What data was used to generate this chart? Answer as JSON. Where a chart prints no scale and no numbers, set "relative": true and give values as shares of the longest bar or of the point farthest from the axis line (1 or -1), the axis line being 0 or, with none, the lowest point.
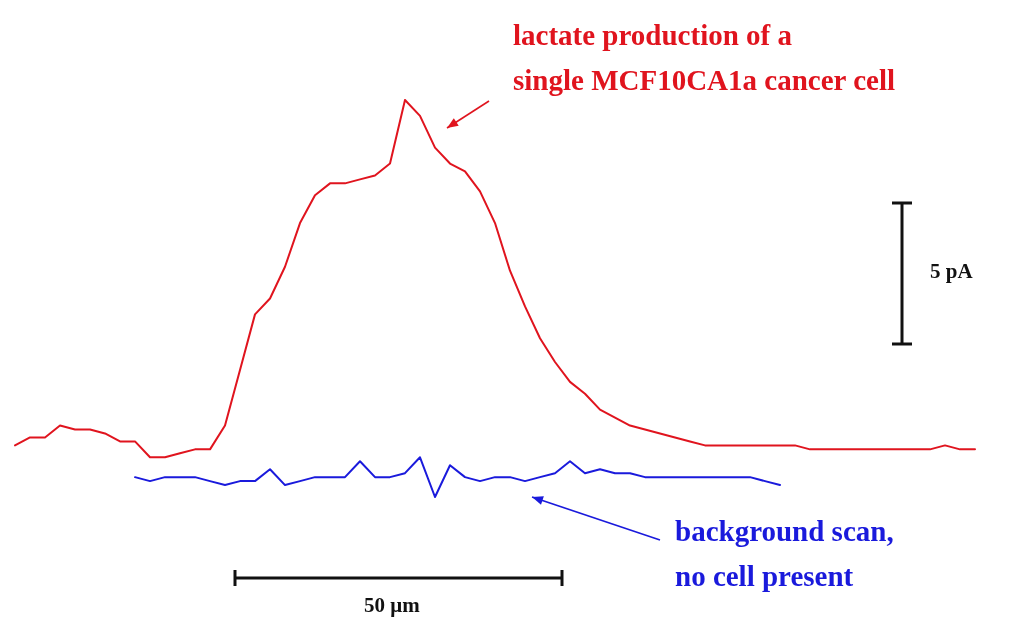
{
  "chart_data": {
    "type": "line",
    "relative": true,
    "categories": [
      null,
      null,
      null,
      null,
      null,
      null,
      null,
      null,
      null,
      null,
      null,
      null,
      null,
      null,
      null,
      null,
      null,
      null,
      null,
      null,
      null,
      null,
      null,
      null,
      null,
      null,
      null,
      null,
      null,
      null,
      null,
      null,
      null,
      null,
      null,
      null,
      null,
      null,
      null,
      null,
      null,
      null,
      null,
      null,
      null,
      null,
      null,
      null,
      null,
      null,
      null,
      null,
      null,
      null,
      null,
      null,
      null,
      null,
      null,
      null,
      null,
      null,
      null,
      null,
      null
    ],
    "series": [
      {
        "name": "lactate production of a\nsingle MCF10CA1a cancer cell",
        "color": "#e0141e",
        "values": [
          0.13,
          0.15,
          0.15,
          0.18,
          0.17,
          0.17,
          0.16,
          0.14,
          0.14,
          0.1,
          0.1,
          0.11,
          0.12,
          0.12,
          0.18,
          0.32,
          0.46,
          0.5,
          0.58,
          0.69,
          0.76,
          0.79,
          0.79,
          0.8,
          0.81,
          0.84,
          1.0,
          0.96,
          0.88,
          0.84,
          0.82,
          0.77,
          0.69,
          0.57,
          0.48,
          0.4,
          0.34,
          0.29,
          0.26,
          0.22,
          0.2,
          0.18,
          0.17,
          0.16,
          0.15,
          0.14,
          0.13,
          0.13,
          0.13,
          0.13,
          0.13,
          0.13,
          0.13,
          0.12,
          0.12,
          0.12,
          0.12,
          0.12,
          0.12,
          0.12,
          0.12,
          0.12,
          0.13,
          0.12,
          0.12
        ]
      },
      {
        "name": "background scan,\nno cell present",
        "color": "#1a1adc",
        "values": [
          null,
          null,
          null,
          null,
          null,
          null,
          null,
          null,
          0.05,
          0.04,
          0.05,
          0.05,
          0.05,
          0.04,
          0.03,
          0.04,
          0.04,
          0.07,
          0.03,
          0.04,
          0.05,
          0.05,
          0.05,
          0.09,
          0.05,
          0.05,
          0.06,
          0.1,
          0.0,
          0.08,
          0.05,
          0.04,
          0.05,
          0.05,
          0.04,
          0.05,
          0.06,
          0.09,
          0.06,
          0.07,
          0.06,
          0.06,
          0.05,
          0.05,
          0.05,
          0.05,
          0.05,
          0.05,
          0.05,
          0.05,
          0.04,
          0.03,
          null,
          null,
          null,
          null,
          null,
          null,
          null,
          null,
          null,
          null,
          null,
          null,
          null
        ]
      }
    ],
    "annotations": [
      "5 pA",
      "50 μm"
    ],
    "marker": "none",
    "line_style": "solid"
  }
}
